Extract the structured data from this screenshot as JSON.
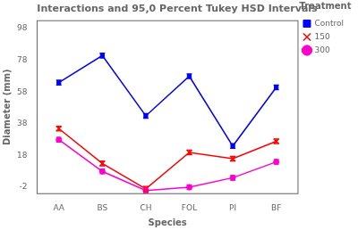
{
  "chart_data": {
    "type": "line",
    "title": "Interactions and 95,0 Percent Tukey HSD Intervals",
    "x_label": "Species",
    "y_label": "Diameter (mm)",
    "categories": [
      "AA",
      "BS",
      "CH",
      "FOL",
      "PI",
      "BF"
    ],
    "series": [
      {
        "name": "Control",
        "color": "#0000FF",
        "marker": "square",
        "values": [
          64,
          81,
          43,
          68,
          24,
          61
        ],
        "errors": [
          1.5,
          1.5,
          1.5,
          1.5,
          1.5,
          1.5
        ]
      },
      {
        "name": "150",
        "color": "#FF0000",
        "marker": "x",
        "values": [
          35,
          13,
          -3,
          20,
          16,
          27
        ],
        "errors": [
          1.5,
          1.5,
          1.5,
          1.5,
          1.5,
          1.5
        ]
      },
      {
        "name": "300",
        "color": "#FF00CC",
        "marker": "circle",
        "values": [
          28,
          8,
          -4,
          -2,
          4,
          14
        ],
        "errors": [
          1.5,
          1.5,
          1.5,
          1.5,
          1.5,
          1.5
        ]
      }
    ],
    "ylim": [
      -6,
      103
    ],
    "yticks": [
      -2,
      18,
      38,
      58,
      78,
      98
    ],
    "grid": false,
    "legend": "right",
    "legend_title": "Treatment"
  }
}
